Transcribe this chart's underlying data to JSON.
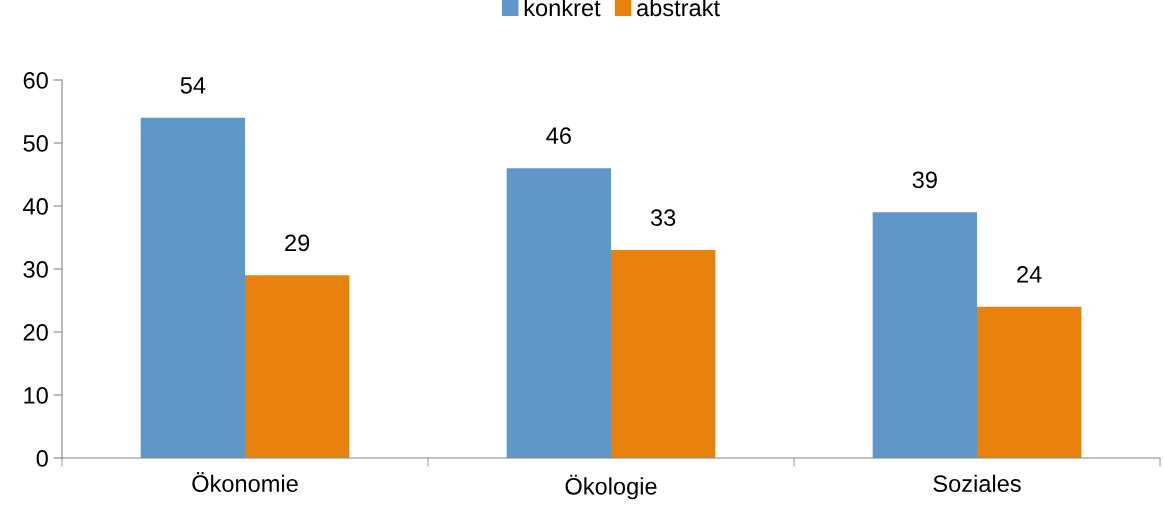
{
  "chart_data": {
    "type": "bar",
    "categories": [
      "Ökonomie",
      "Ökologie",
      "Soziales"
    ],
    "series": [
      {
        "name": "konkret",
        "color": "#6097c9",
        "values": [
          54,
          46,
          39
        ]
      },
      {
        "name": "abstrakt",
        "color": "#e8820c",
        "values": [
          29,
          33,
          24
        ]
      }
    ],
    "ylim": [
      0,
      60
    ],
    "yticks": [
      0,
      10,
      20,
      30,
      40,
      50,
      60
    ],
    "grid": false,
    "legend": "top",
    "data_labels": true
  }
}
